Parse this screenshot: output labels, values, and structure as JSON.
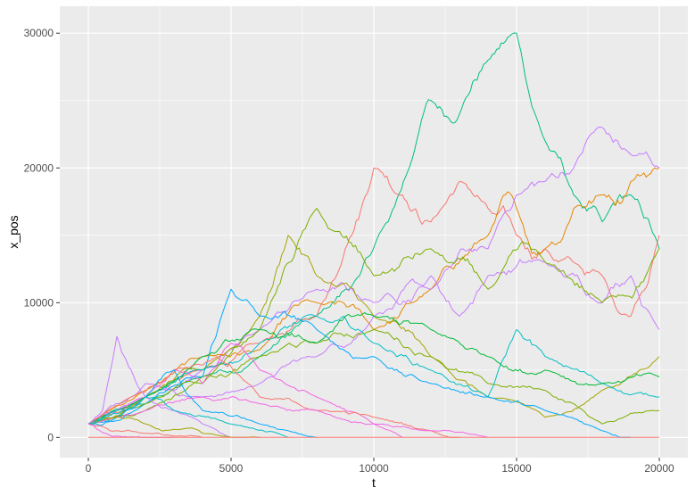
{
  "chart_data": {
    "type": "line",
    "xlabel": "t",
    "ylabel": "x_pos",
    "xlim": [
      -1000,
      21000
    ],
    "ylim": [
      -1500,
      32000
    ],
    "x_ticks": [
      0,
      5000,
      10000,
      15000,
      20000
    ],
    "x_tick_labels": [
      "0",
      "5000",
      "10000",
      "15000",
      "20000"
    ],
    "y_ticks": [
      0,
      10000,
      20000,
      30000
    ],
    "y_tick_labels": [
      "0",
      "10000",
      "20000",
      "30000"
    ],
    "grid": true,
    "legend": "none",
    "panel_background": "#EBEBEB",
    "grid_color": "#FFFFFF",
    "series_colors": [
      "#F8766D",
      "#E58700",
      "#C99800",
      "#A3A500",
      "#6BB100",
      "#00BA38",
      "#00BF7D",
      "#00C0AF",
      "#00BCD8",
      "#00B0F6",
      "#619CFF",
      "#B983FF",
      "#E76BF3",
      "#FD61D1",
      "#FF67A4"
    ],
    "x_range": [
      0,
      20000
    ],
    "series": [
      {
        "color": "#00BF7D",
        "x": [
          0,
          2000,
          4000,
          6000,
          8000,
          9500,
          10500,
          11500,
          12000,
          13000,
          14000,
          15000,
          16000,
          17000,
          18000,
          19000,
          20000
        ],
        "y": [
          1000,
          2500,
          4500,
          6000,
          9000,
          12000,
          16000,
          22000,
          25000,
          24000,
          28000,
          30000,
          22000,
          18000,
          16000,
          18000,
          14000
        ]
      },
      {
        "color": "#F8766D",
        "x": [
          0,
          2000,
          4000,
          6000,
          8000,
          9000,
          10000,
          11000,
          12000,
          13000,
          14000,
          15000,
          16000,
          17000,
          18000,
          19000,
          20000
        ],
        "y": [
          1000,
          3000,
          5000,
          7000,
          9000,
          14000,
          20000,
          18000,
          16000,
          19000,
          17000,
          15000,
          14000,
          13000,
          12000,
          9000,
          15000
        ]
      },
      {
        "color": "#E58700",
        "x": [
          0,
          2000,
          4000,
          6000,
          8000,
          10000,
          12000,
          14000,
          15000,
          16000,
          17000,
          18000,
          19000,
          20000
        ],
        "y": [
          1000,
          3500,
          6000,
          6500,
          10000,
          8000,
          11000,
          15000,
          17000,
          14000,
          17000,
          18000,
          19000,
          20000
        ]
      },
      {
        "color": "#C77CFF",
        "x": [
          0,
          2000,
          4000,
          6000,
          8000,
          10000,
          12000,
          14000,
          15000,
          16000,
          17000,
          18000,
          19000,
          20000
        ],
        "y": [
          1000,
          4000,
          3000,
          4000,
          6000,
          9000,
          11000,
          14000,
          18000,
          19000,
          20000,
          23000,
          21000,
          20000
        ]
      },
      {
        "color": "#C77CFF",
        "x": [
          0,
          2000,
          4000,
          6000,
          8000,
          10000,
          12000,
          13000,
          14000,
          16000,
          18000,
          19000,
          20000
        ],
        "y": [
          1000,
          3000,
          5000,
          8000,
          11000,
          10000,
          12000,
          9000,
          12000,
          13000,
          10000,
          12000,
          8000
        ]
      },
      {
        "color": "#A3A500",
        "x": [
          0,
          2000,
          4000,
          6000,
          7000,
          8000,
          10000,
          12000,
          14000,
          16000,
          18000,
          20000
        ],
        "y": [
          1000,
          3000,
          5000,
          9000,
          15000,
          12000,
          9000,
          6000,
          3000,
          1500,
          3500,
          6000
        ]
      },
      {
        "color": "#7CAE00",
        "x": [
          0,
          2000,
          4000,
          6000,
          8000,
          10000,
          12000,
          14000,
          16000,
          17000,
          18000,
          19000,
          20000
        ],
        "y": [
          1000,
          2000,
          4500,
          6000,
          7000,
          8000,
          6000,
          4000,
          3500,
          2500,
          1000,
          1800,
          2000
        ]
      },
      {
        "color": "#00A9FF",
        "x": [
          0,
          2000,
          4000,
          5000,
          6000,
          8000,
          10000,
          12000,
          14000,
          16000,
          18000,
          19000
        ],
        "y": [
          1000,
          2500,
          4500,
          11000,
          9000,
          8000,
          6000,
          4000,
          3000,
          2000,
          500,
          0
        ]
      },
      {
        "color": "#00BFC4",
        "x": [
          0,
          2000,
          4000,
          6000,
          8000,
          10000,
          12000,
          14000,
          15000,
          16000,
          18000,
          20000
        ],
        "y": [
          1000,
          3000,
          5000,
          7000,
          9000,
          7000,
          5000,
          3000,
          8000,
          6000,
          4000,
          3000
        ]
      },
      {
        "color": "#7CAE00",
        "x": [
          0,
          2000,
          4000,
          6000,
          8000,
          10000,
          12000,
          14000,
          16000,
          18000,
          20000
        ],
        "y": [
          1000,
          2500,
          4000,
          8000,
          17000,
          12000,
          14000,
          11000,
          13000,
          10000,
          14000
        ]
      },
      {
        "color": "#F564E3",
        "x": [
          0,
          1000,
          2000,
          3000,
          4000,
          5000,
          6000,
          8000,
          10000,
          11000
        ],
        "y": [
          1000,
          2000,
          3000,
          5000,
          4000,
          7000,
          5000,
          3000,
          1000,
          0
        ]
      },
      {
        "color": "#00BA38",
        "x": [
          0,
          2000,
          4000,
          6000,
          8000,
          10000,
          12000,
          14000,
          16000,
          18000,
          20000
        ],
        "y": [
          1000,
          3000,
          6000,
          8000,
          7000,
          9000,
          8000,
          6000,
          5000,
          4000,
          4500
        ]
      },
      {
        "color": "#F8766D",
        "x": [
          0,
          1500,
          3000,
          4500,
          6000,
          8000,
          10000,
          12000,
          13000
        ],
        "y": [
          1000,
          3000,
          5000,
          6000,
          3000,
          2000,
          1500,
          500,
          0
        ]
      },
      {
        "color": "#00A9FF",
        "x": [
          0,
          1000,
          2000,
          3000,
          4000,
          6000,
          7000,
          8000
        ],
        "y": [
          1000,
          1500,
          3000,
          5000,
          2000,
          1000,
          500,
          0
        ]
      },
      {
        "color": "#C77CFF",
        "x": [
          0,
          500,
          1000,
          1500,
          2000,
          3000,
          4000,
          5000
        ],
        "y": [
          1000,
          2000,
          7500,
          5000,
          3000,
          2000,
          1000,
          0
        ]
      },
      {
        "color": "#F564E3",
        "x": [
          0,
          1000,
          2000,
          4000,
          6000,
          8000,
          10000,
          12000,
          14000
        ],
        "y": [
          1000,
          1500,
          2000,
          3000,
          2500,
          2000,
          1000,
          500,
          0
        ]
      },
      {
        "color": "#A3A500",
        "x": [
          0,
          1000,
          2000,
          3000,
          4000,
          6000
        ],
        "y": [
          1000,
          1500,
          1000,
          600,
          300,
          0
        ]
      },
      {
        "color": "#00BFC4",
        "x": [
          0,
          1000,
          2000,
          3000,
          5000,
          7000
        ],
        "y": [
          1000,
          2000,
          3000,
          2000,
          1000,
          0
        ]
      },
      {
        "color": "#F8766D",
        "x": [
          0,
          500,
          1000,
          2000,
          3000,
          4000
        ],
        "y": [
          1000,
          800,
          500,
          300,
          100,
          0
        ]
      },
      {
        "color": "#F564E3",
        "x": [
          0,
          300,
          600,
          1000,
          2000,
          3000
        ],
        "y": [
          1000,
          600,
          300,
          100,
          0,
          0
        ]
      },
      {
        "color": "#F8766D",
        "x": [
          0,
          20000
        ],
        "y": [
          0,
          0
        ]
      }
    ]
  }
}
